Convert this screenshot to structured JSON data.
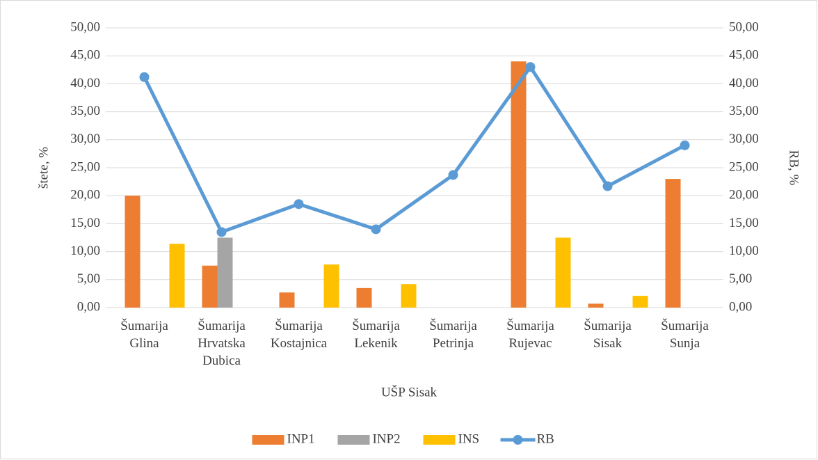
{
  "chart_data": {
    "type": "bar+line",
    "xlabel": "UŠP Sisak",
    "ylabel": "štete, %",
    "y2label": "RB, %",
    "categories": [
      "Šumarija Glina",
      "Šumarija Hrvatska Dubica",
      "Šumarija Kostajnica",
      "Šumarija Lekenik",
      "Šumarija Petrinja",
      "Šumarija Rujevac",
      "Šumarija Sisak",
      "Šumarija Sunja"
    ],
    "series": [
      {
        "name": "INP1",
        "type": "bar",
        "color": "#ed7d31",
        "values": [
          20.0,
          7.5,
          2.7,
          3.5,
          null,
          44.0,
          0.7,
          23.0
        ]
      },
      {
        "name": "INP2",
        "type": "bar",
        "color": "#a5a5a5",
        "values": [
          null,
          12.5,
          null,
          null,
          null,
          null,
          null,
          null
        ]
      },
      {
        "name": "INS",
        "type": "bar",
        "color": "#ffc000",
        "values": [
          11.4,
          null,
          7.7,
          4.2,
          null,
          12.5,
          2.1,
          null
        ]
      },
      {
        "name": "RB",
        "type": "line",
        "axis": "y2",
        "color": "#5b9bd5",
        "values": [
          41.2,
          13.5,
          18.5,
          14.0,
          23.7,
          43.0,
          21.7,
          29.0
        ]
      }
    ],
    "ylim": [
      0,
      50
    ],
    "yticks": [
      {
        "value": 0,
        "label": "0,00"
      },
      {
        "value": 5,
        "label": "5,00"
      },
      {
        "value": 10,
        "label": "10,00"
      },
      {
        "value": 15,
        "label": "15,00"
      },
      {
        "value": 20,
        "label": "20,00"
      },
      {
        "value": 25,
        "label": "25,00"
      },
      {
        "value": 30,
        "label": "30,00"
      },
      {
        "value": 35,
        "label": "35,00"
      },
      {
        "value": 40,
        "label": "40,00"
      },
      {
        "value": 45,
        "label": "45,00"
      },
      {
        "value": 50,
        "label": "50,00"
      }
    ],
    "y2lim": [
      0,
      50
    ],
    "y2ticks": [
      {
        "value": 0,
        "label": "0,00"
      },
      {
        "value": 5,
        "label": "5,00"
      },
      {
        "value": 10,
        "label": "10,00"
      },
      {
        "value": 15,
        "label": "15,00"
      },
      {
        "value": 20,
        "label": "20,00"
      },
      {
        "value": 25,
        "label": "25,00"
      },
      {
        "value": 30,
        "label": "30,00"
      },
      {
        "value": 35,
        "label": "35,00"
      },
      {
        "value": 40,
        "label": "40,00"
      },
      {
        "value": 45,
        "label": "45,00"
      },
      {
        "value": 50,
        "label": "50,00"
      }
    ],
    "grid": true,
    "legend": "bottom"
  }
}
